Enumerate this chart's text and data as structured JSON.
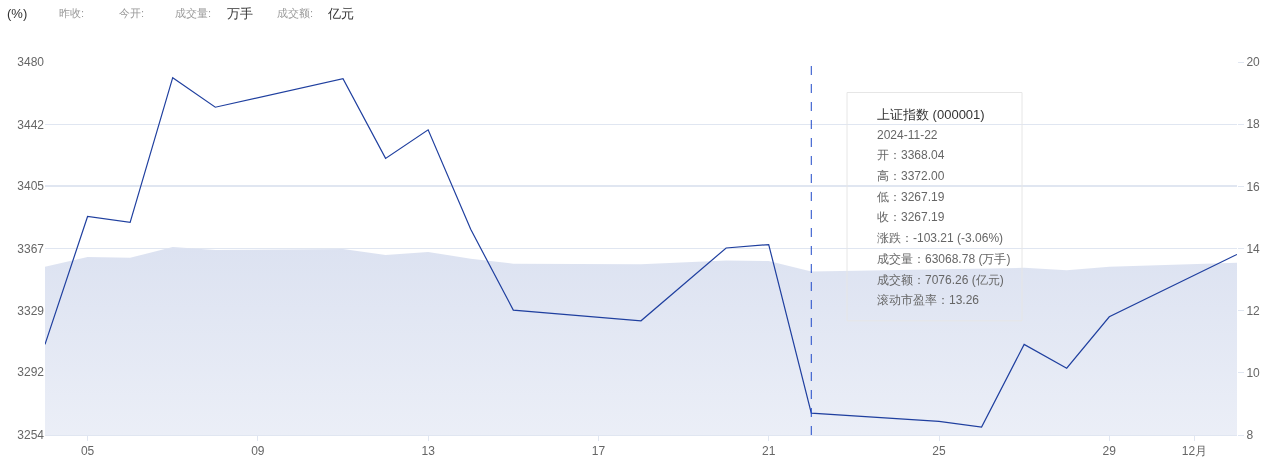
{
  "chart_data": {
    "type": "line",
    "x": [
      "2024-11-04",
      "2024-11-05",
      "2024-11-06",
      "2024-11-07",
      "2024-11-08",
      "2024-11-11",
      "2024-11-12",
      "2024-11-13",
      "2024-11-14",
      "2024-11-15",
      "2024-11-18",
      "2024-11-20",
      "2024-11-21",
      "2024-11-22",
      "2024-11-25",
      "2024-11-26",
      "2024-11-27",
      "2024-11-28",
      "2024-11-29",
      "2024-12-02"
    ],
    "series": [
      {
        "type": "area",
        "axis": "y2",
        "color": "#dce2f1",
        "values": [
          13.41,
          13.73,
          13.7,
          14.05,
          13.95,
          13.98,
          13.79,
          13.89,
          13.67,
          13.51,
          13.49,
          13.61,
          13.6,
          13.26,
          null,
          null,
          13.38,
          13.3,
          13.41,
          13.54
        ]
      },
      {
        "color": "#1f3f9f",
        "values": [
          3308.9,
          3386.4,
          3382.8,
          3470.5,
          3452.6,
          3469.9,
          3421.6,
          3438.9,
          3378.6,
          3329.7,
          3323.2,
          3367.3,
          3369.4,
          3267.2,
          3262.3,
          3258.8,
          3308.9,
          3294.5,
          3325.6,
          3363.4
        ]
      }
    ],
    "xlim": [
      "2024-11-04",
      "2024-12-02"
    ],
    "xticks": [
      {
        "value": "2024-11-05",
        "label": "05"
      },
      {
        "value": "2024-11-09",
        "label": "09"
      },
      {
        "value": "2024-11-13",
        "label": "13"
      },
      {
        "value": "2024-11-17",
        "label": "17"
      },
      {
        "value": "2024-11-21",
        "label": "21"
      },
      {
        "value": "2024-11-25",
        "label": "25"
      },
      {
        "value": "2024-11-29",
        "label": "29"
      },
      {
        "value": "2024-12-01",
        "label": "12月"
      }
    ],
    "ylim": [
      3254,
      3480
    ],
    "yticks": [
      3254,
      3292,
      3329,
      3367,
      3405,
      3442,
      3480
    ],
    "y2lim": [
      8,
      20
    ],
    "y2ticks": [
      8,
      10,
      12,
      14,
      16,
      18,
      20
    ],
    "grid": "y",
    "ref_lines": [
      {
        "axis": "x",
        "value": "2024-11-22",
        "color": "#1f49c9",
        "line_style": "dashed"
      }
    ],
    "annotations": [
      "(%)",
      "昨收:",
      "今开:",
      "成交量:",
      "万手",
      "成交额:",
      "亿元",
      "上证指数 (000001)",
      "2024-11-22",
      "开：3368.04",
      "高：3372.00",
      "低：3267.19",
      "收：3267.19",
      "涨跌：-103.21 (-3.06%)",
      "成交量：63068.78 (万手)",
      "成交额：7076.26 (亿元)",
      "滚动市盈率：13.26"
    ]
  }
}
